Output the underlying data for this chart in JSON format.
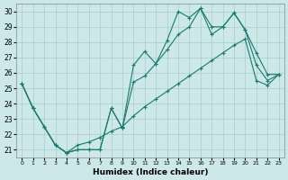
{
  "xlabel": "Humidex (Indice chaleur)",
  "xlim": [
    -0.5,
    23.5
  ],
  "ylim": [
    20.5,
    30.5
  ],
  "yticks": [
    21,
    22,
    23,
    24,
    25,
    26,
    27,
    28,
    29,
    30
  ],
  "xticks": [
    0,
    1,
    2,
    3,
    4,
    5,
    6,
    7,
    8,
    9,
    10,
    11,
    12,
    13,
    14,
    15,
    16,
    17,
    18,
    19,
    20,
    21,
    22,
    23
  ],
  "bg_color": "#cce8e8",
  "grid_color": "#aacccc",
  "line_color": "#1a7a6e",
  "line1_x": [
    0,
    1,
    2,
    3,
    4,
    5,
    6,
    7,
    8,
    9,
    10,
    11,
    12,
    13,
    14,
    15,
    16,
    17,
    18,
    19,
    20,
    21,
    22,
    23
  ],
  "line1_y": [
    25.3,
    23.7,
    22.5,
    21.3,
    20.8,
    21.0,
    21.0,
    21.0,
    23.7,
    22.4,
    26.5,
    27.4,
    26.6,
    28.1,
    30.0,
    29.6,
    30.2,
    29.0,
    29.0,
    29.9,
    28.8,
    27.3,
    25.9,
    25.9
  ],
  "line2_x": [
    0,
    1,
    2,
    3,
    4,
    5,
    6,
    7,
    8,
    9,
    10,
    11,
    12,
    13,
    14,
    15,
    16,
    17,
    18,
    19,
    20,
    21,
    22,
    23
  ],
  "line2_y": [
    25.3,
    23.7,
    22.5,
    21.3,
    20.8,
    21.0,
    21.0,
    21.0,
    23.7,
    22.4,
    25.4,
    25.8,
    26.6,
    27.5,
    28.5,
    29.0,
    30.2,
    28.5,
    29.0,
    29.9,
    28.8,
    26.5,
    25.5,
    25.9
  ],
  "line3_x": [
    0,
    1,
    2,
    3,
    4,
    5,
    6,
    7,
    8,
    9,
    10,
    11,
    12,
    13,
    14,
    15,
    16,
    17,
    18,
    19,
    20,
    21,
    22,
    23
  ],
  "line3_y": [
    25.3,
    23.7,
    22.5,
    21.3,
    20.8,
    21.3,
    21.5,
    21.8,
    22.2,
    22.5,
    23.2,
    23.8,
    24.3,
    24.8,
    25.3,
    25.8,
    26.3,
    26.8,
    27.3,
    27.8,
    28.2,
    25.5,
    25.2,
    25.9
  ]
}
